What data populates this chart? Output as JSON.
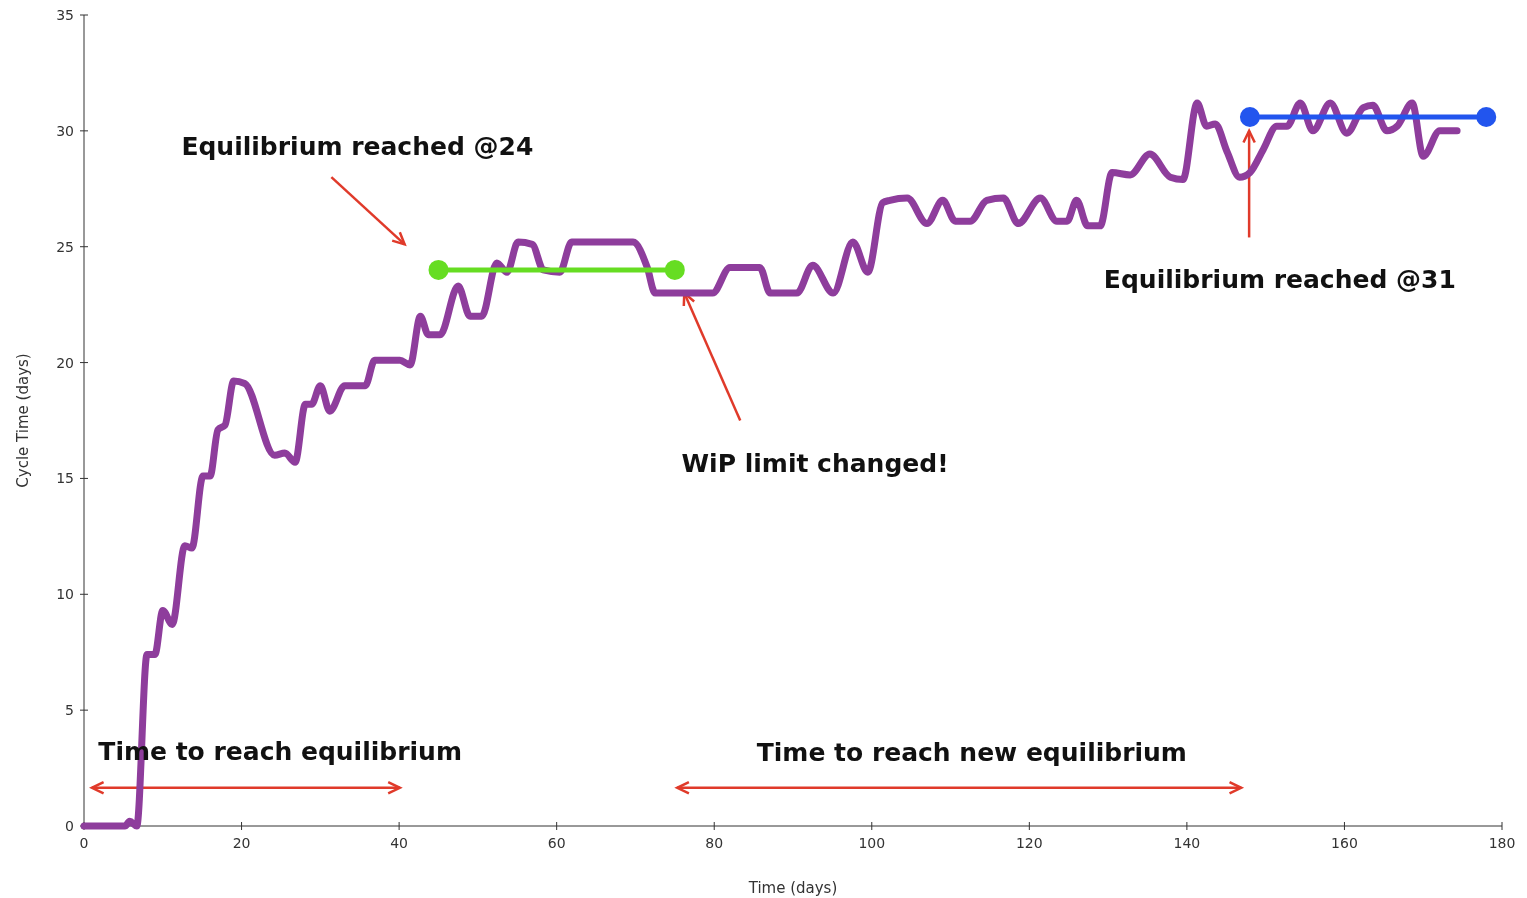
{
  "chart_data": {
    "type": "line",
    "xlabel": "Time (days)",
    "ylabel": "Cycle Time (days)",
    "xlim": [
      0,
      180
    ],
    "xticks": [
      0,
      20,
      40,
      60,
      80,
      100,
      120,
      140,
      160,
      180
    ],
    "ylim": [
      0,
      35
    ],
    "yticks": [
      0,
      5,
      10,
      15,
      20,
      25,
      30,
      35
    ],
    "series": [
      {
        "color": "#8e3d9c",
        "marker": "none",
        "x": [
          0,
          5.2,
          5.8,
          6.7,
          8,
          9,
          10,
          11.2,
          12.8,
          13.7,
          15.1,
          16,
          17,
          17.9,
          19,
          20.4,
          24.2,
          25.5,
          26.8,
          28.1,
          28.9,
          30,
          31.2,
          33.1,
          35.7,
          36.9,
          40.1,
          41.4,
          42.7,
          43.7,
          45.2,
          47.5,
          49,
          50.5,
          52.4,
          53.7,
          55.1,
          56.9,
          58.3,
          60.4,
          61.9,
          69.7,
          71.5,
          72.5,
          79.8,
          82,
          85.8,
          87.1,
          90.5,
          92.5,
          95.1,
          97.6,
          99.5,
          101.4,
          102.3,
          104.5,
          107,
          109,
          110.6,
          112.5,
          114.6,
          116.7,
          118.6,
          121.4,
          123.5,
          124.8,
          126,
          127.4,
          129,
          130.5,
          132.8,
          135.3,
          137.9,
          139.5,
          141.3,
          142.5,
          143.6,
          145.1,
          146.7,
          148,
          149.7,
          151.4,
          152.7,
          154.4,
          156,
          158.2,
          160.3,
          162.4,
          163.6,
          165.4,
          166.7,
          168.6,
          170,
          172.1,
          174.3
        ],
        "values": [
          0,
          0,
          0.2,
          0,
          7.4,
          7.4,
          9.3,
          8.7,
          12.1,
          12,
          15.1,
          15.1,
          17.1,
          17.3,
          19.2,
          19.1,
          16,
          16.1,
          15.7,
          18.2,
          18.2,
          19,
          17.9,
          19,
          19,
          20.1,
          20.1,
          19.9,
          22,
          21.2,
          21.2,
          23.3,
          22,
          22,
          24.3,
          23.9,
          25.2,
          25.1,
          24,
          23.9,
          25.2,
          25.2,
          24.1,
          23,
          23,
          24.1,
          24.1,
          23,
          23,
          24.2,
          23,
          25.2,
          23.9,
          26.9,
          27,
          27.1,
          26,
          27,
          26.1,
          26.1,
          27,
          27.1,
          26,
          27.1,
          26.1,
          26.1,
          27,
          25.9,
          25.9,
          28.2,
          28.1,
          29,
          28,
          27.9,
          31.2,
          30.2,
          30.3,
          29.1,
          28,
          28.2,
          29.2,
          30.2,
          30.2,
          31.2,
          30,
          31.2,
          29.9,
          31,
          31.1,
          30,
          30.2,
          31.2,
          28.9,
          30,
          30
        ]
      },
      {
        "color": "#66dd22",
        "marker": "circle",
        "x": [
          45,
          75
        ],
        "values": [
          24,
          24
        ]
      },
      {
        "color": "#2255ee",
        "marker": "circle",
        "x": [
          148,
          178
        ],
        "values": [
          30.6,
          30.6
        ]
      }
    ],
    "annotations": [
      "Equilibrium reached @24",
      {
        "text": "WiP limit changed!",
        "x": 76.2,
        "y": 23
      },
      {
        "text": "Equilibrium reached @31",
        "x": 147.9,
        "y": 30
      },
      "Time to reach equilibrium",
      "Time to reach new equilibrium"
    ]
  }
}
